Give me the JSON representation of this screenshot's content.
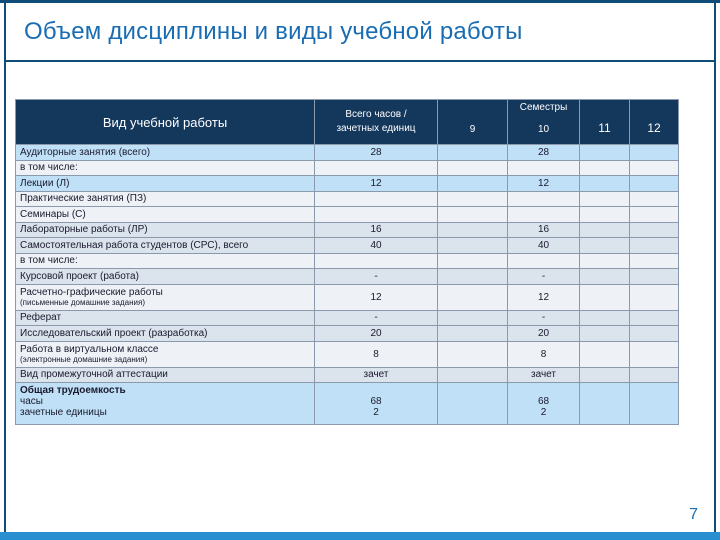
{
  "slide": {
    "title": "Объем дисциплины и виды учебной работы",
    "page_number": "7"
  },
  "table": {
    "header": {
      "type_label": "Вид учебной работы",
      "total_label_line1": "Всего часов /",
      "total_label_line2": "зачетных единиц",
      "semesters_label": "Семестры",
      "semesters": [
        "9",
        "10",
        "11",
        "12"
      ]
    },
    "rows": [
      {
        "name": "Аудиторные занятия (всего)",
        "total": "28",
        "s9": "",
        "s10": "28",
        "s11": "",
        "s12": ""
      },
      {
        "name": "в том числе:",
        "total": "",
        "s9": "",
        "s10": "",
        "s11": "",
        "s12": ""
      },
      {
        "name": "Лекции (Л)",
        "total": "12",
        "s9": "",
        "s10": "12",
        "s11": "",
        "s12": ""
      },
      {
        "name": "Практические занятия (ПЗ)",
        "total": "",
        "s9": "",
        "s10": "",
        "s11": "",
        "s12": ""
      },
      {
        "name": "Семинары (С)",
        "total": "",
        "s9": "",
        "s10": "",
        "s11": "",
        "s12": ""
      },
      {
        "name": "Лабораторные работы (ЛР)",
        "total": "16",
        "s9": "",
        "s10": "16",
        "s11": "",
        "s12": ""
      },
      {
        "name": "Самостоятельная работа студентов (СРС), всего",
        "total": "40",
        "s9": "",
        "s10": "40",
        "s11": "",
        "s12": ""
      },
      {
        "name": "в том числе:",
        "total": "",
        "s9": "",
        "s10": "",
        "s11": "",
        "s12": ""
      },
      {
        "name": "Курсовой проект (работа)",
        "total": "-",
        "s9": "",
        "s10": "-",
        "s11": "",
        "s12": ""
      },
      {
        "name": "Расчетно-графические работы",
        "sub": "(письменные домашние задания)",
        "total": "12",
        "s9": "",
        "s10": "12",
        "s11": "",
        "s12": ""
      },
      {
        "name": "Реферат",
        "total": "-",
        "s9": "",
        "s10": "-",
        "s11": "",
        "s12": ""
      },
      {
        "name": "Исследовательский проект (разработка)",
        "total": "20",
        "s9": "",
        "s10": "20",
        "s11": "",
        "s12": ""
      },
      {
        "name": "Работа в виртуальном классе",
        "sub": "(электронные домашние задания)",
        "total": "8",
        "s9": "",
        "s10": "8",
        "s11": "",
        "s12": ""
      },
      {
        "name": "Вид промежуточной аттестации",
        "total": "зачет",
        "s9": "",
        "s10": "зачет",
        "s11": "",
        "s12": ""
      }
    ],
    "total_row": {
      "title": "Общая трудоемкость",
      "line_hours": "часы",
      "line_credits": "зачетные единицы",
      "hours_total": "68",
      "credits_total": "2",
      "hours_s10": "68",
      "credits_s10": "2"
    }
  },
  "colors": {
    "header_bg": "#14375c",
    "accent": "#1a6db3",
    "row_alt": "#dbe3ec",
    "row_highlight": "#bfe0f6"
  }
}
